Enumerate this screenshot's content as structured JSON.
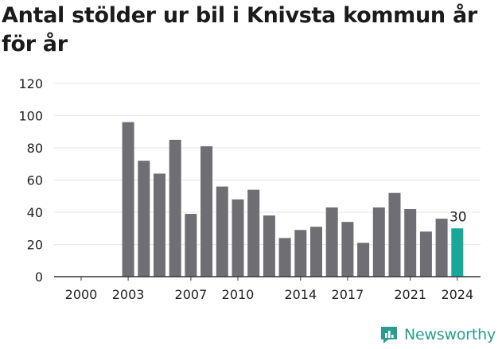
{
  "title": "Antal stölder ur bil i Knivsta kommun år för år",
  "brand": {
    "name": "Newsworthy",
    "icon": "newsworthy-logo-icon",
    "color": "#2a9d8f"
  },
  "colors": {
    "bar": "#6f6e73",
    "highlight": "#17a89a",
    "grid": "#e6e6e6",
    "axis": "#333333"
  },
  "chart_data": {
    "type": "bar",
    "title": "Antal stölder ur bil i Knivsta kommun år för år",
    "xlabel": "",
    "ylabel": "",
    "categories": [
      2000,
      2001,
      2002,
      2003,
      2004,
      2005,
      2006,
      2007,
      2008,
      2009,
      2010,
      2011,
      2012,
      2013,
      2014,
      2015,
      2016,
      2017,
      2018,
      2019,
      2020,
      2021,
      2022,
      2023,
      2024
    ],
    "values": [
      0,
      0,
      0,
      96,
      72,
      64,
      85,
      39,
      81,
      56,
      48,
      54,
      38,
      24,
      29,
      31,
      43,
      34,
      21,
      43,
      52,
      42,
      28,
      36,
      30
    ],
    "x_tick_labels": [
      "2000",
      "2003",
      "2007",
      "2010",
      "2014",
      "2017",
      "2021",
      "2024"
    ],
    "y_ticks": [
      0,
      20,
      40,
      60,
      80,
      100,
      120
    ],
    "ylim": [
      0,
      120
    ],
    "grid": true,
    "highlight_index": 24,
    "data_labels": [
      {
        "index": 24,
        "text": "30"
      }
    ]
  }
}
